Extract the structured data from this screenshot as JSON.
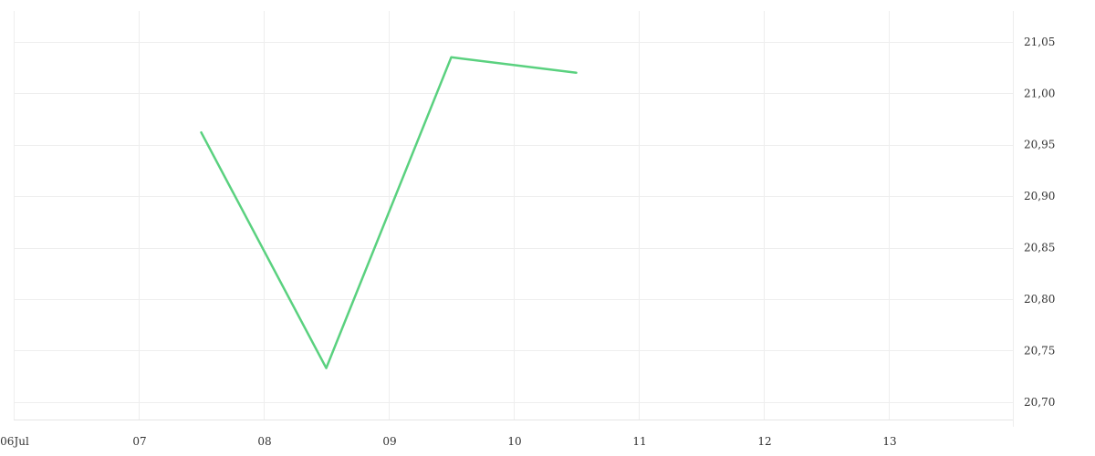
{
  "chart_data": {
    "type": "line",
    "title": "",
    "xlabel": "",
    "ylabel": "",
    "x_ticks": [
      {
        "date": "2024-07-06",
        "label": "06Jul"
      },
      {
        "date": "2024-07-07",
        "label": "07"
      },
      {
        "date": "2024-07-08",
        "label": "08"
      },
      {
        "date": "2024-07-09",
        "label": "09"
      },
      {
        "date": "2024-07-10",
        "label": "10"
      },
      {
        "date": "2024-07-11",
        "label": "11"
      },
      {
        "date": "2024-07-12",
        "label": "12"
      },
      {
        "date": "2024-07-13",
        "label": "13"
      }
    ],
    "xlim": [
      "2024-07-06",
      "2024-07-14"
    ],
    "y_ticks": [
      {
        "value": 20.7,
        "label": "20,70"
      },
      {
        "value": 20.75,
        "label": "20,75"
      },
      {
        "value": 20.8,
        "label": "20,80"
      },
      {
        "value": 20.85,
        "label": "20,85"
      },
      {
        "value": 20.9,
        "label": "20,90"
      },
      {
        "value": 20.95,
        "label": "20,95"
      },
      {
        "value": 21.0,
        "label": "21,00"
      },
      {
        "value": 21.05,
        "label": "21,05"
      }
    ],
    "ylim": [
      20.683,
      21.08
    ],
    "y_axis_position": "right",
    "grid": true,
    "legend": "none",
    "series": [
      {
        "color": "#5ad17f",
        "points": [
          {
            "x": "2024-07-07 12:00",
            "y": 20.962
          },
          {
            "x": "2024-07-08 12:00",
            "y": 20.733
          },
          {
            "x": "2024-07-09 12:00",
            "y": 21.035
          },
          {
            "x": "2024-07-10 12:00",
            "y": 21.02
          }
        ]
      }
    ]
  }
}
